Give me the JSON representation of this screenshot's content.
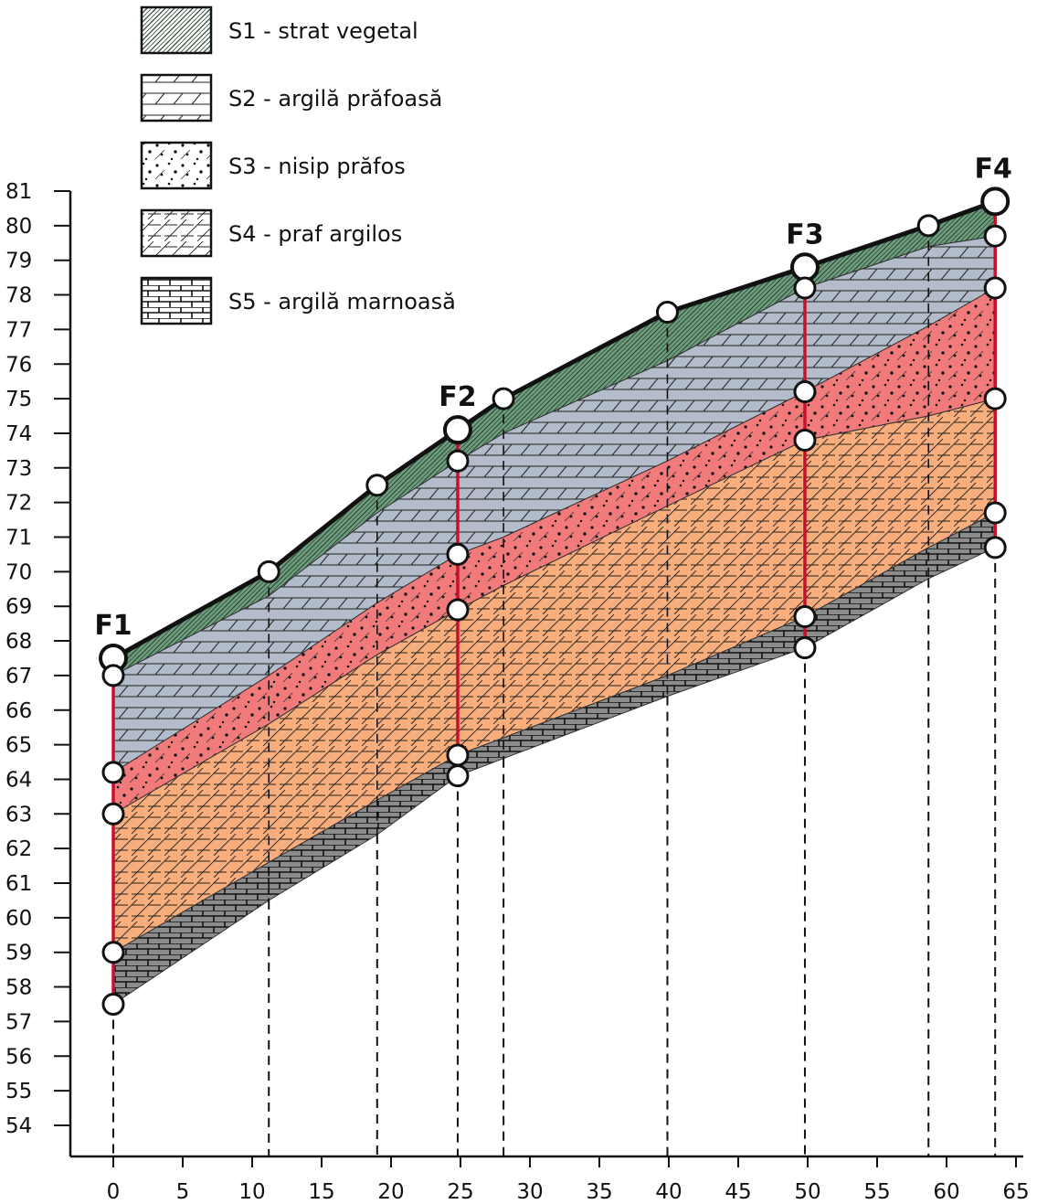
{
  "chart_data": {
    "type": "area",
    "title": "",
    "xlabel": "",
    "ylabel": "",
    "xlim": [
      -2,
      66
    ],
    "ylim": [
      53,
      81.5
    ],
    "x_ticks": [
      0,
      5,
      10,
      15,
      20,
      25,
      30,
      35,
      40,
      45,
      50,
      55,
      60,
      65
    ],
    "y_ticks": [
      54,
      55,
      56,
      57,
      58,
      59,
      60,
      61,
      62,
      63,
      64,
      65,
      66,
      67,
      68,
      69,
      70,
      71,
      72,
      73,
      74,
      75,
      76,
      77,
      78,
      79,
      80,
      81
    ],
    "layers": [
      {
        "id": "S1",
        "name": "S1 - strat vegetal",
        "color": "#6f9e7f",
        "pattern": "crosshatch",
        "top": [
          [
            0,
            67.5
          ],
          [
            11.2,
            70.0
          ],
          [
            19,
            72.5
          ],
          [
            24.8,
            74.1
          ],
          [
            28.1,
            75.0
          ],
          [
            39.9,
            77.5
          ],
          [
            49.8,
            78.8
          ],
          [
            58.7,
            80.0
          ],
          [
            63.5,
            80.7
          ]
        ],
        "bottom": [
          [
            0,
            67.0
          ],
          [
            11.2,
            69.3
          ],
          [
            19,
            71.7
          ],
          [
            24.8,
            73.2
          ],
          [
            28.1,
            74.0
          ],
          [
            39.9,
            76.1
          ],
          [
            49.8,
            78.2
          ],
          [
            58.7,
            79.4
          ],
          [
            63.5,
            79.7
          ]
        ]
      },
      {
        "id": "S2",
        "name": "S2 - argilă prăfoasă",
        "color": "#b2bccb",
        "pattern": "hatch-horizontal",
        "top": [
          [
            0,
            67.0
          ],
          [
            11.2,
            69.3
          ],
          [
            19,
            71.7
          ],
          [
            24.8,
            73.2
          ],
          [
            28.1,
            74.0
          ],
          [
            39.9,
            76.1
          ],
          [
            49.8,
            78.2
          ],
          [
            58.7,
            79.4
          ],
          [
            63.5,
            79.7
          ]
        ],
        "bottom": [
          [
            0,
            64.2
          ],
          [
            11.2,
            67.0
          ],
          [
            19,
            69.1
          ],
          [
            24.8,
            70.5
          ],
          [
            28.1,
            71.0
          ],
          [
            39.9,
            73.2
          ],
          [
            49.8,
            75.2
          ],
          [
            58.7,
            77.1
          ],
          [
            63.5,
            78.2
          ]
        ]
      },
      {
        "id": "S3",
        "name": "S3 - nisip prăfos",
        "color": "#f17a7a",
        "pattern": "dots",
        "top": [
          [
            0,
            64.2
          ],
          [
            11.2,
            67.0
          ],
          [
            19,
            69.1
          ],
          [
            24.8,
            70.5
          ],
          [
            28.1,
            71.0
          ],
          [
            39.9,
            73.2
          ],
          [
            49.8,
            75.2
          ],
          [
            58.7,
            77.1
          ],
          [
            63.5,
            78.2
          ]
        ],
        "bottom": [
          [
            0,
            63.0
          ],
          [
            11.2,
            65.6
          ],
          [
            19,
            67.6
          ],
          [
            24.8,
            68.9
          ],
          [
            28.1,
            69.6
          ],
          [
            39.9,
            71.9
          ],
          [
            49.8,
            73.8
          ],
          [
            58.7,
            74.5
          ],
          [
            63.5,
            75.0
          ]
        ]
      },
      {
        "id": "S4",
        "name": "S4 - praf argilos",
        "color": "#f8ad7c",
        "pattern": "hatch-diagonal",
        "top": [
          [
            0,
            63.0
          ],
          [
            11.2,
            65.6
          ],
          [
            19,
            67.6
          ],
          [
            24.8,
            68.9
          ],
          [
            28.1,
            69.6
          ],
          [
            39.9,
            71.9
          ],
          [
            49.8,
            73.8
          ],
          [
            58.7,
            74.5
          ],
          [
            63.5,
            75.0
          ]
        ],
        "bottom": [
          [
            0,
            59.0
          ],
          [
            11.2,
            61.6
          ],
          [
            19,
            63.4
          ],
          [
            24.8,
            64.7
          ],
          [
            28.1,
            65.2
          ],
          [
            39.9,
            67.0
          ],
          [
            49.8,
            68.7
          ],
          [
            58.7,
            70.7
          ],
          [
            63.5,
            71.7
          ]
        ]
      },
      {
        "id": "S5",
        "name": "S5 - argilă marnoasă",
        "color": "#8c8c8c",
        "pattern": "bricks",
        "top": [
          [
            0,
            59.0
          ],
          [
            11.2,
            61.6
          ],
          [
            19,
            63.4
          ],
          [
            24.8,
            64.7
          ],
          [
            28.1,
            65.2
          ],
          [
            39.9,
            67.0
          ],
          [
            49.8,
            68.7
          ],
          [
            58.7,
            70.7
          ],
          [
            63.5,
            71.7
          ]
        ],
        "bottom": [
          [
            0,
            57.5
          ],
          [
            11.2,
            60.5
          ],
          [
            19,
            62.4
          ],
          [
            24.8,
            64.1
          ],
          [
            28.1,
            64.6
          ],
          [
            39.9,
            66.4
          ],
          [
            49.8,
            67.8
          ],
          [
            58.7,
            69.8
          ],
          [
            63.5,
            70.7
          ]
        ]
      }
    ],
    "boreholes": [
      {
        "label": "F1",
        "x": 0,
        "top": 67.5,
        "bottom": 57.5,
        "contacts": [
          67.0,
          64.2,
          63.0,
          59.0,
          57.5
        ]
      },
      {
        "label": "F2",
        "x": 24.8,
        "top": 74.1,
        "bottom": 64.1,
        "contacts": [
          73.2,
          70.5,
          68.9,
          64.7,
          64.1
        ]
      },
      {
        "label": "F3",
        "x": 49.8,
        "top": 78.8,
        "bottom": 67.8,
        "contacts": [
          78.2,
          75.2,
          73.8,
          68.7,
          67.8
        ]
      },
      {
        "label": "F4",
        "x": 63.5,
        "top": 80.7,
        "bottom": 70.7,
        "contacts": [
          79.7,
          78.2,
          75.0,
          71.7,
          70.7
        ]
      }
    ],
    "surface_points": [
      {
        "x": 11.2,
        "y": 70.0
      },
      {
        "x": 19,
        "y": 72.5
      },
      {
        "x": 28.1,
        "y": 75.0
      },
      {
        "x": 39.9,
        "y": 77.5
      },
      {
        "x": 58.7,
        "y": 80.0
      }
    ],
    "dashed_verticals": [
      0,
      11.2,
      19,
      24.8,
      28.1,
      39.9,
      49.8,
      58.7,
      63.5
    ],
    "colors": {
      "borehole_line": "#c8102e",
      "surface_line": "#111111",
      "marker_fill": "#ffffff"
    }
  }
}
